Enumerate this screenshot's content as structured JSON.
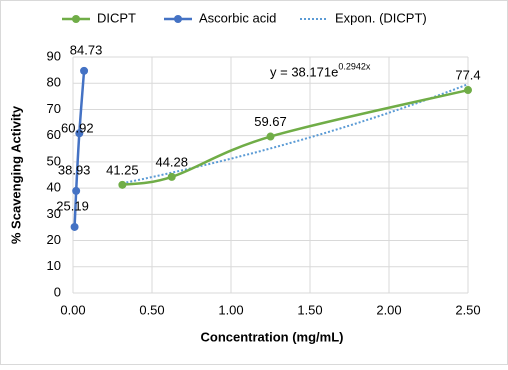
{
  "chart_data": {
    "type": "line",
    "xlabel": "Concentration (mg/mL)",
    "ylabel": "% Scavenging Activity",
    "series": [
      {
        "name": "DICPT",
        "color": "#70ad47",
        "x": [
          0.3125,
          0.625,
          1.25,
          2.5
        ],
        "values": [
          41.25,
          44.28,
          59.67,
          77.4
        ]
      },
      {
        "name": "Ascorbic acid",
        "color": "#4472c4",
        "x": [
          0.01,
          0.02,
          0.04,
          0.07
        ],
        "values": [
          25.19,
          38.93,
          60.92,
          84.73
        ]
      }
    ],
    "trendline": {
      "name": "Expon. (DICPT)",
      "color": "#5b9bd5",
      "equation": "y = 38.171e",
      "exponent": "0.2942x",
      "a": 38.171,
      "b": 0.2942
    },
    "xlim": [
      0,
      2.5
    ],
    "xticks": [
      {
        "value": 0,
        "label": "0.00"
      },
      {
        "value": 0.5,
        "label": "0.50"
      },
      {
        "value": 1,
        "label": "1.00"
      },
      {
        "value": 1.5,
        "label": "1.50"
      },
      {
        "value": 2,
        "label": "2.00"
      },
      {
        "value": 2.5,
        "label": "2.50"
      }
    ],
    "ylim": [
      0,
      90
    ],
    "yticks": [
      0,
      10,
      20,
      30,
      40,
      50,
      60,
      70,
      80,
      90
    ],
    "grid": true,
    "legend": "top"
  }
}
